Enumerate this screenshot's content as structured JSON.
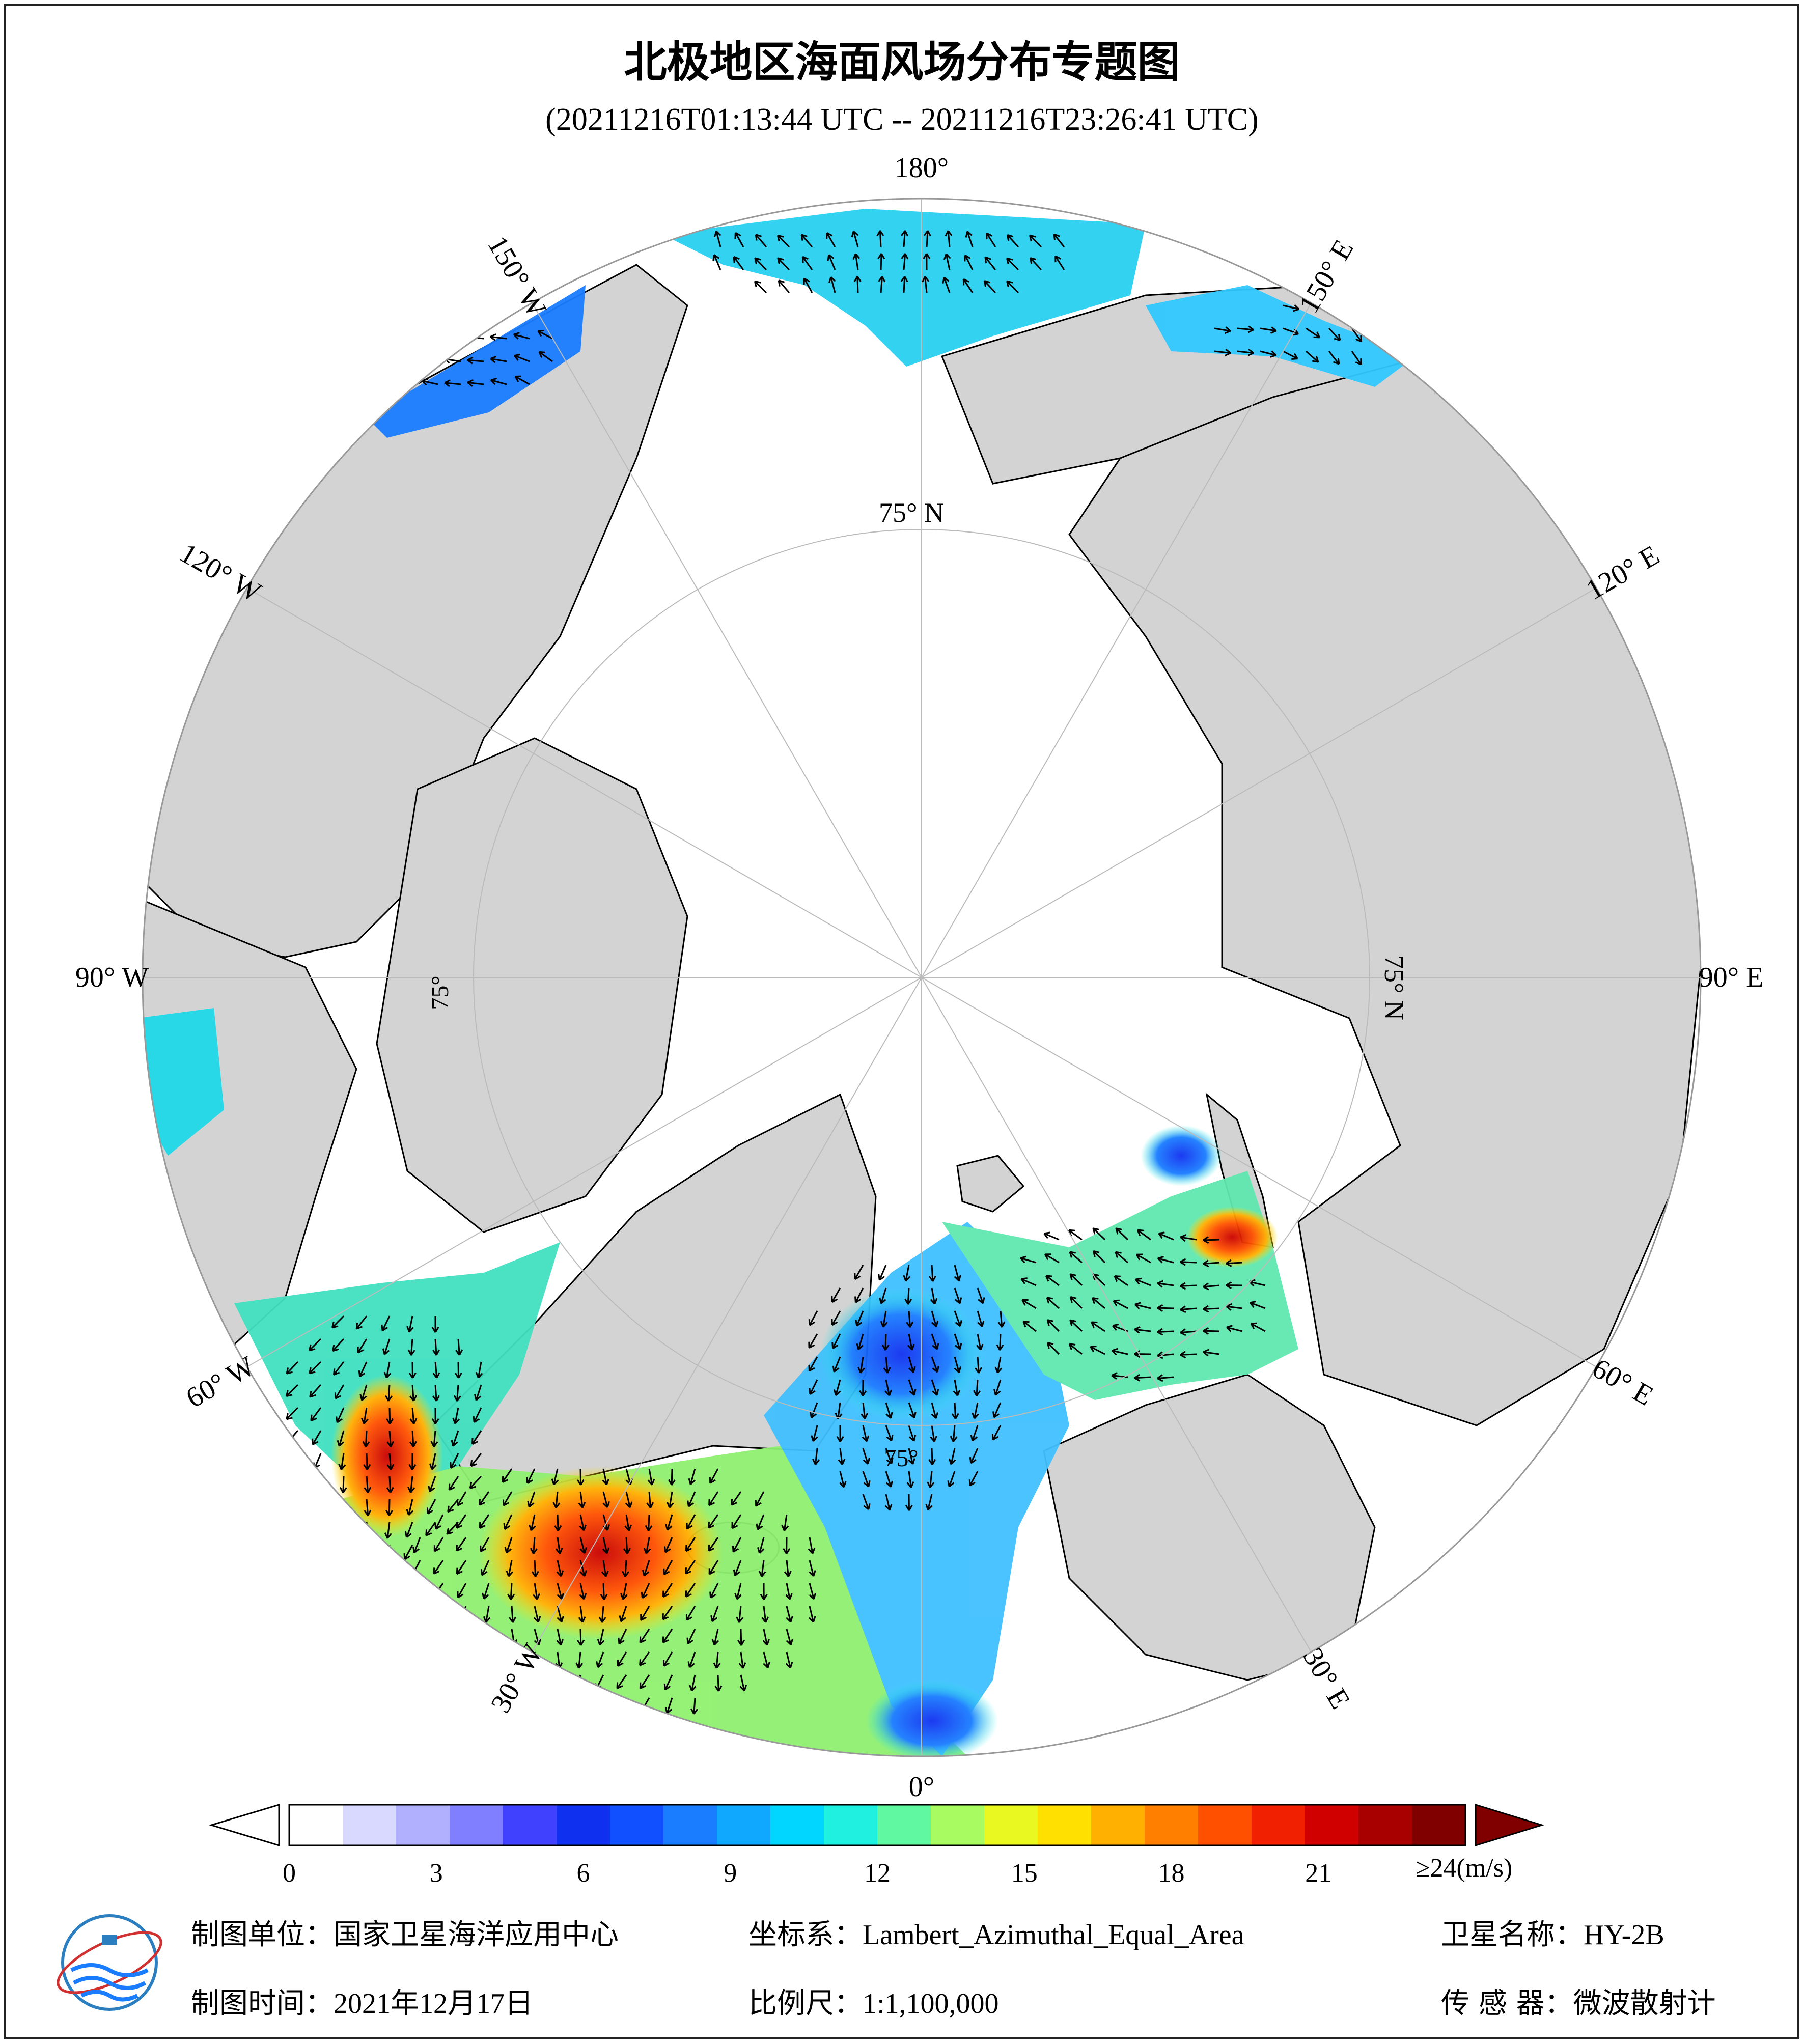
{
  "title": "北极地区海面风场分布专题图",
  "time_range": "(20211216T01:13:44 UTC -- 20211216T23:26:41 UTC)",
  "map": {
    "projection_center": "North Pole",
    "longitude_labels": [
      "180°",
      "150° E",
      "120° E",
      "90° E",
      "60° E",
      "30° E",
      "0°",
      "30° W",
      "60° W",
      "90° W",
      "120° W",
      "150° W"
    ],
    "latitude_labels": [
      "75° N",
      "75° N",
      "75°",
      "75°"
    ],
    "colors": {
      "land": "#d3d3d3",
      "ocean_no_data": "#ffffff",
      "graticule": "#bbbbbb",
      "coastline": "#000000"
    }
  },
  "colorbar": {
    "unit_label": "≥24(m/s)",
    "ticks": [
      "0",
      "3",
      "6",
      "9",
      "12",
      "15",
      "18",
      "21"
    ],
    "tick_values": [
      0,
      3,
      6,
      9,
      12,
      15,
      18,
      21
    ],
    "range": [
      0,
      24
    ],
    "colors": [
      "#ffffff",
      "#d9d9ff",
      "#b0b0ff",
      "#7f7fff",
      "#4040ff",
      "#1030f0",
      "#1050ff",
      "#1a7cff",
      "#10a8ff",
      "#00d6ff",
      "#20f0e0",
      "#60f8a0",
      "#a8fb60",
      "#e8f820",
      "#ffe000",
      "#ffb000",
      "#ff8000",
      "#ff5000",
      "#f02000",
      "#d00000",
      "#a80000",
      "#800000"
    ],
    "over_color": "#800000",
    "under_color": "#ffffff"
  },
  "footer": {
    "unit_label": "制图单位：",
    "unit_value": "国家卫星海洋应用中心",
    "crs_label": "坐标系：",
    "crs_value": "Lambert_Azimuthal_Equal_Area",
    "satellite_label": "卫星名称：",
    "satellite_value": "HY-2B",
    "date_label": "制图时间：",
    "date_value": "2021年12月17日",
    "scale_label": "比例尺：",
    "scale_value": "1:1,100,000",
    "sensor_label": "传 感 器：",
    "sensor_value": "微波散射计"
  }
}
